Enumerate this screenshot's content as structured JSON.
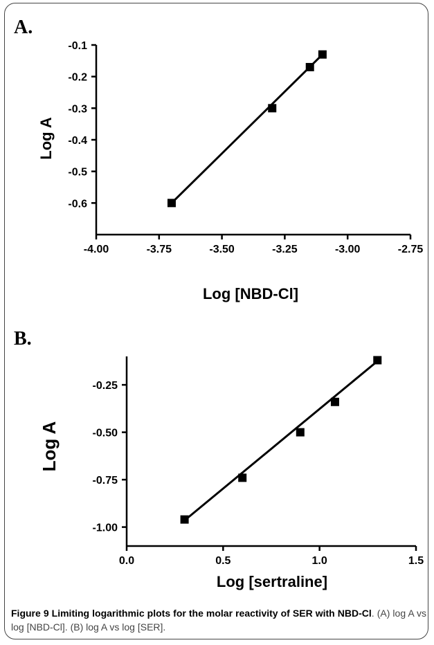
{
  "chart_data": [
    {
      "type": "line",
      "panel_label": "A.",
      "xlabel": "Log [NBD-Cl]",
      "ylabel": "Log A",
      "xlim": [
        -4.0,
        -2.75
      ],
      "ylim": [
        -0.7,
        -0.1
      ],
      "x_ticks": [
        -4.0,
        -3.75,
        -3.5,
        -3.25,
        -3.0,
        -2.75
      ],
      "x_tick_labels": [
        "-4.00",
        "-3.75",
        "-3.50",
        "-3.25",
        "-3.00",
        "-2.75"
      ],
      "y_ticks": [
        -0.1,
        -0.2,
        -0.3,
        -0.4,
        -0.5,
        -0.6
      ],
      "y_tick_labels": [
        "-0.1",
        "-0.2",
        "-0.3",
        "-0.4",
        "-0.5",
        "-0.6"
      ],
      "grid": false,
      "series": [
        {
          "x": [
            -3.7,
            -3.3,
            -3.15,
            -3.1
          ],
          "y": [
            -0.6,
            -0.3,
            -0.17,
            -0.13
          ]
        }
      ],
      "fit_line": {
        "x": [
          -3.7,
          -3.1
        ],
        "y": [
          -0.6,
          -0.13
        ]
      }
    },
    {
      "type": "line",
      "panel_label": "B.",
      "xlabel": "Log [sertraline]",
      "ylabel": "Log A",
      "xlim": [
        0.0,
        1.5
      ],
      "ylim": [
        -1.1,
        -0.1
      ],
      "x_ticks": [
        0.0,
        0.5,
        1.0,
        1.5
      ],
      "x_tick_labels": [
        "0.0",
        "0.5",
        "1.0",
        "1.5"
      ],
      "y_ticks": [
        -0.25,
        -0.5,
        -0.75,
        -1.0
      ],
      "y_tick_labels": [
        "-0.25",
        "-0.50",
        "-0.75",
        "-1.00"
      ],
      "grid": false,
      "series": [
        {
          "x": [
            0.3,
            0.6,
            0.9,
            1.08,
            1.3
          ],
          "y": [
            -0.96,
            -0.74,
            -0.5,
            -0.34,
            -0.12
          ]
        }
      ],
      "fit_line": {
        "x": [
          0.3,
          1.3
        ],
        "y": [
          -0.965,
          -0.125
        ]
      }
    }
  ],
  "caption": {
    "bold": "Figure 9 Limiting logarithmic plots for the molar reactivity of SER with NBD-Cl",
    "rest": ". (A) log A vs log [NBD-Cl]. (B) log A vs log [SER]."
  }
}
